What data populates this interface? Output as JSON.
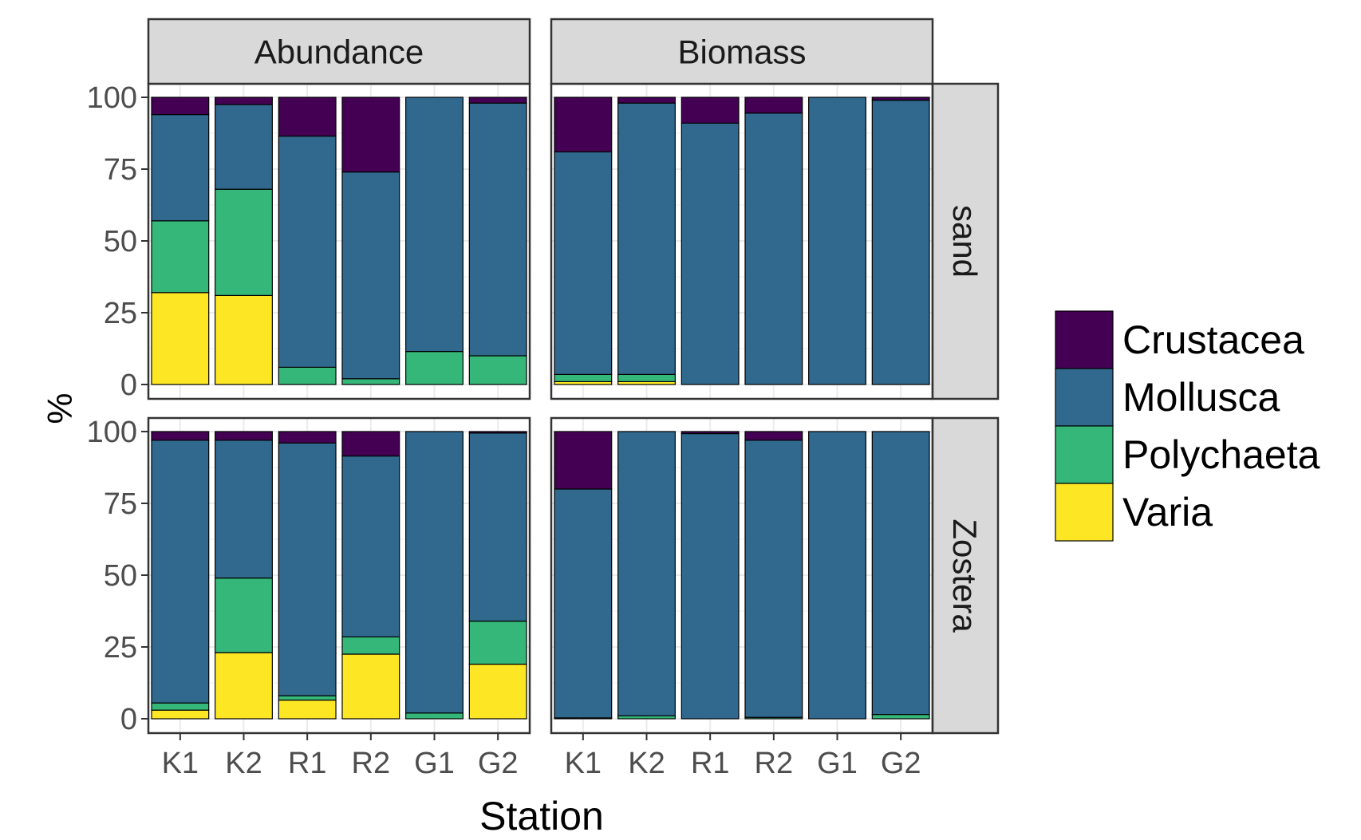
{
  "chart_data": {
    "type": "bar",
    "stacked": true,
    "grid": true,
    "xlabel": "Station",
    "ylabel": "%",
    "ylim": [
      0,
      100
    ],
    "yticks": [
      0,
      25,
      50,
      75,
      100
    ],
    "categories": [
      "K1",
      "K2",
      "R1",
      "R2",
      "G1",
      "G2"
    ],
    "facet_columns": [
      "Abundance",
      "Biomass"
    ],
    "facet_rows": [
      "sand",
      "Zostera"
    ],
    "legend": {
      "position": "right",
      "entries": [
        {
          "name": "Crustacea",
          "color": "#440154"
        },
        {
          "name": "Mollusca",
          "color": "#31688E"
        },
        {
          "name": "Polychaeta",
          "color": "#35B779"
        },
        {
          "name": "Varia",
          "color": "#FDE725"
        }
      ]
    },
    "series_order_bottom_to_top": [
      "Varia",
      "Polychaeta",
      "Mollusca",
      "Crustacea"
    ],
    "panels": [
      {
        "column": "Abundance",
        "row": "sand",
        "values": {
          "Varia": [
            32,
            31,
            0,
            0,
            0,
            0
          ],
          "Polychaeta": [
            25,
            37,
            6,
            2,
            11.5,
            10
          ],
          "Mollusca": [
            37,
            29.5,
            80.5,
            72,
            88.5,
            88
          ],
          "Crustacea": [
            6,
            2.5,
            13.5,
            26,
            0,
            2
          ]
        }
      },
      {
        "column": "Biomass",
        "row": "sand",
        "values": {
          "Varia": [
            1,
            1,
            0,
            0,
            0,
            0
          ],
          "Polychaeta": [
            2.5,
            2.5,
            0,
            0,
            0,
            0
          ],
          "Mollusca": [
            77.5,
            94.5,
            91,
            94.5,
            100,
            99
          ],
          "Crustacea": [
            19,
            2,
            9,
            5.5,
            0,
            1
          ]
        }
      },
      {
        "column": "Abundance",
        "row": "Zostera",
        "values": {
          "Varia": [
            3,
            23,
            6.5,
            22.5,
            0,
            19
          ],
          "Polychaeta": [
            2.5,
            26,
            1.5,
            6,
            2,
            15
          ],
          "Mollusca": [
            91.5,
            48,
            88,
            63,
            98,
            65.5
          ],
          "Crustacea": [
            3,
            3,
            4,
            8.5,
            0,
            0.5
          ]
        }
      },
      {
        "column": "Biomass",
        "row": "Zostera",
        "values": {
          "Varia": [
            0,
            0,
            0,
            0,
            0,
            0
          ],
          "Polychaeta": [
            0.3,
            1,
            0,
            0.5,
            0,
            1.5
          ],
          "Mollusca": [
            79.7,
            99,
            99.3,
            96.5,
            100,
            98.5
          ],
          "Crustacea": [
            20,
            0,
            0.7,
            3,
            0,
            0
          ]
        }
      }
    ]
  }
}
